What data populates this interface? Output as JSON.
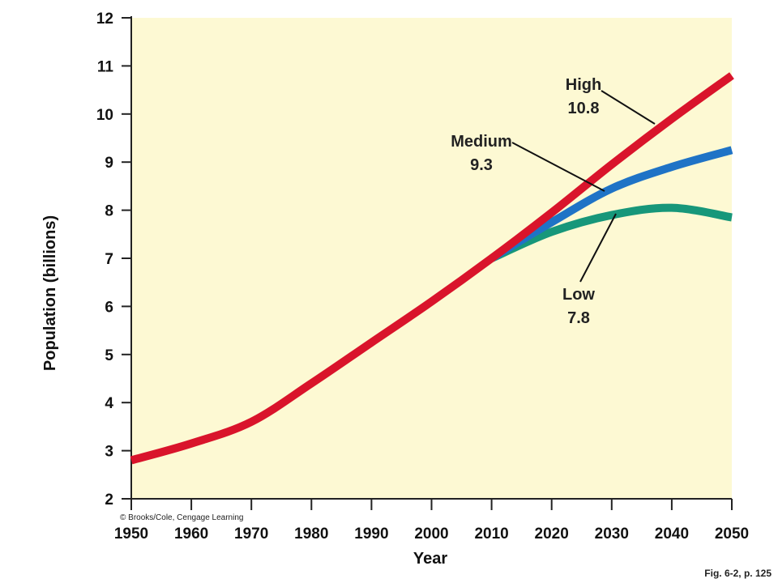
{
  "chart_data": {
    "type": "line",
    "ylabel": "Population (billions)",
    "xlabel": "Year",
    "xlim": [
      1950,
      2050
    ],
    "ylim": [
      2,
      12
    ],
    "x_ticks": [
      "1950",
      "1960",
      "1970",
      "1980",
      "1990",
      "2000",
      "2010",
      "2020",
      "2030",
      "2040",
      "2050"
    ],
    "y_ticks": [
      "2",
      "3",
      "4",
      "5",
      "6",
      "7",
      "8",
      "9",
      "10",
      "11",
      "12"
    ],
    "grid": false,
    "series": [
      {
        "name": "High",
        "color": "#d9142b",
        "x": [
          1950,
          1960,
          1970,
          1980,
          1990,
          2000,
          2010,
          2020,
          2030,
          2040,
          2050
        ],
        "values": [
          2.8,
          3.15,
          3.6,
          4.4,
          5.25,
          6.1,
          7.0,
          7.95,
          8.95,
          9.9,
          10.8
        ]
      },
      {
        "name": "Medium",
        "color": "#1f73c6",
        "x": [
          2010,
          2020,
          2030,
          2040,
          2050
        ],
        "values": [
          7.0,
          7.75,
          8.45,
          8.9,
          9.25
        ]
      },
      {
        "name": "Low",
        "color": "#17977a",
        "x": [
          2010,
          2020,
          2030,
          2040,
          2050
        ],
        "values": [
          7.0,
          7.55,
          7.9,
          8.05,
          7.85
        ]
      }
    ],
    "annotations": [
      {
        "series": "High",
        "line1": "High",
        "line2": "10.8"
      },
      {
        "series": "Medium",
        "line1": "Medium",
        "line2": "9.3"
      },
      {
        "series": "Low",
        "line1": "Low",
        "line2": "7.8"
      }
    ],
    "plot_background": "#fdf9d3",
    "copyright": "© Brooks/Cole, Cengage Learning",
    "figure_note": "Fig. 6-2, p. 125"
  }
}
